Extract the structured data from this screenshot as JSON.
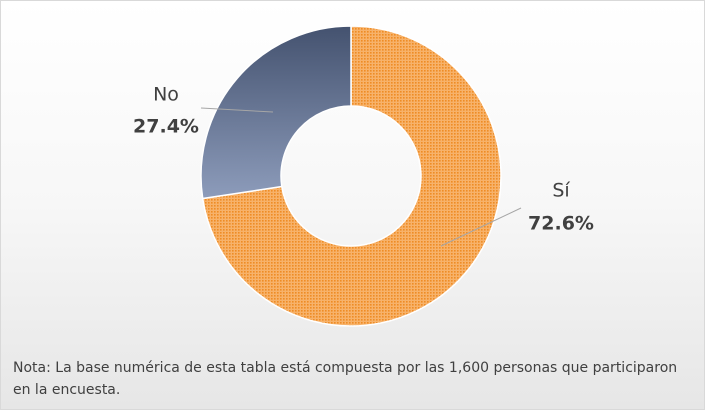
{
  "chart_data": {
    "type": "donut",
    "categories": [
      "Sí",
      "No"
    ],
    "values": [
      72.6,
      27.4
    ],
    "value_labels": [
      "72.6%",
      "27.4%"
    ],
    "colors": [
      "#f39b3c",
      "#5a6a8c"
    ],
    "note": "Nota: La base numérica de esta tabla está compuesta por las 1,600 personas que participaron en la encuesta."
  }
}
